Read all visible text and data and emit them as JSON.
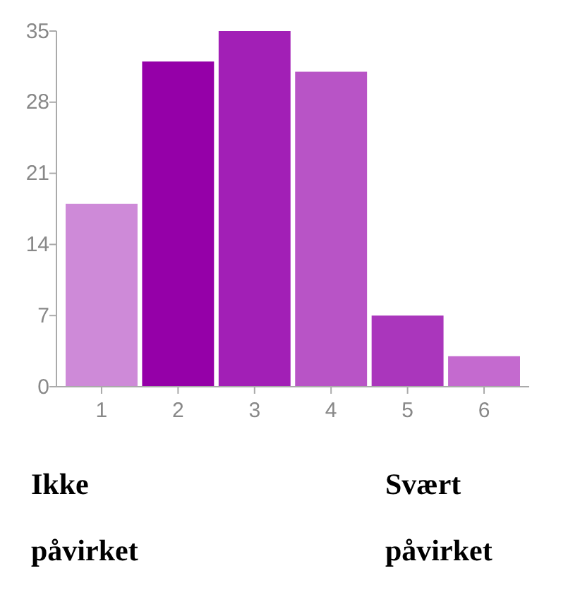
{
  "chart_data": {
    "type": "bar",
    "categories": [
      "1",
      "2",
      "3",
      "4",
      "5",
      "6"
    ],
    "values": [
      18,
      32,
      35,
      31,
      7,
      3
    ],
    "colors": [
      "#ce8ad8",
      "#9500a8",
      "#a21fb6",
      "#b854c6",
      "#aa36bc",
      "#c46acf"
    ],
    "ylim": [
      0,
      35
    ],
    "yticks": [
      0,
      7,
      14,
      21,
      28,
      35
    ],
    "grid": false,
    "annotations": [
      "Ikke påvirket",
      "Svært påvirket"
    ]
  }
}
